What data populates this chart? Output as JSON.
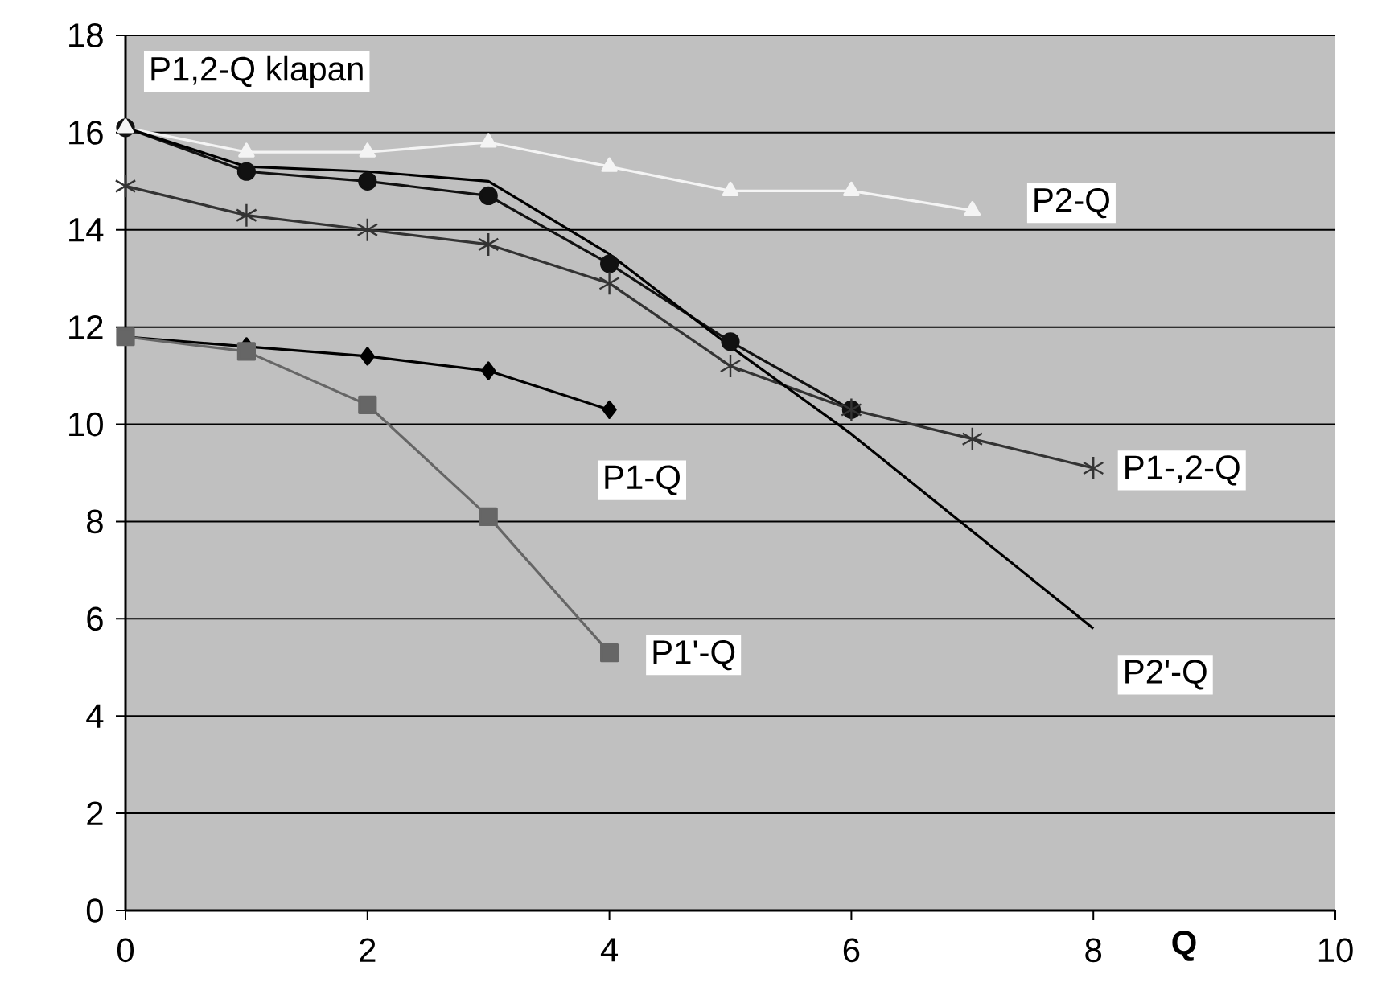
{
  "chart_data": {
    "type": "line",
    "xlabel": "Q",
    "xlim": [
      0,
      10
    ],
    "xticks": [
      0,
      2,
      4,
      6,
      8,
      10
    ],
    "ylim": [
      0,
      18
    ],
    "yticks": [
      0,
      2,
      4,
      6,
      8,
      10,
      12,
      14,
      16,
      18
    ],
    "grid": "y",
    "legend": false,
    "series": [
      {
        "name": "P1,2-Q klapan",
        "color": "#111111",
        "marker": "circle",
        "x": [
          0,
          1,
          2,
          3,
          4,
          5,
          6
        ],
        "values": [
          16.1,
          15.2,
          15.0,
          14.7,
          13.3,
          11.7,
          10.3
        ]
      },
      {
        "name": "P2-Q",
        "color": "#f4f4f4",
        "marker": "triangle",
        "x": [
          0,
          1,
          2,
          3,
          4,
          5,
          6,
          7
        ],
        "values": [
          16.1,
          15.6,
          15.6,
          15.8,
          15.3,
          14.8,
          14.8,
          14.4
        ]
      },
      {
        "name": "P1-,2-Q",
        "color": "#333333",
        "marker": "cross",
        "x": [
          0,
          1,
          2,
          3,
          4,
          5,
          6,
          7,
          8
        ],
        "values": [
          14.9,
          14.3,
          14.0,
          13.7,
          12.9,
          11.2,
          10.3,
          9.7,
          9.1
        ]
      },
      {
        "name": "P1-Q",
        "color": "#000000",
        "marker": "diamond",
        "x": [
          0,
          1,
          2,
          3,
          4
        ],
        "values": [
          11.8,
          11.6,
          11.4,
          11.1,
          10.3
        ]
      },
      {
        "name": "P1'-Q",
        "color": "#666666",
        "marker": "square",
        "x": [
          0,
          1,
          2,
          3,
          4
        ],
        "values": [
          11.8,
          11.5,
          10.4,
          8.1,
          5.3
        ]
      },
      {
        "name": "P2'-Q",
        "color": "#000000",
        "marker": "none",
        "x": [
          0,
          1,
          2,
          3,
          4,
          5,
          6,
          7,
          8
        ],
        "values": [
          16.1,
          15.3,
          15.2,
          15.0,
          13.5,
          11.6,
          9.8,
          7.8,
          5.8
        ]
      }
    ]
  }
}
